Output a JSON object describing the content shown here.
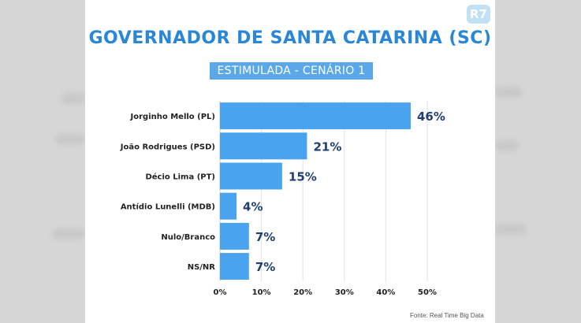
{
  "header": {
    "logo_text": "R7",
    "title": "GOVERNADOR DE SANTA CATARINA (SC)",
    "subtitle": "ESTIMULADA - CENÁRIO 1"
  },
  "footer": {
    "source": "Fonte: Real Time Big Data"
  },
  "colors": {
    "bar": "#4aa3ee",
    "value_label": "#1f3f73",
    "title": "#2a86d6",
    "subtitle_bg": "#5aa8e8"
  },
  "chart_data": {
    "type": "bar",
    "orientation": "horizontal",
    "categories": [
      "Jorginho Mello (PL)",
      "João Rodrigues (PSD)",
      "Décio Lima (PT)",
      "Antídio Lunelli (MDB)",
      "Nulo/Branco",
      "NS/NR"
    ],
    "values": [
      46,
      21,
      15,
      4,
      7,
      7
    ],
    "value_labels": [
      "46%",
      "21%",
      "15%",
      "4%",
      "7%",
      "7%"
    ],
    "xlim": [
      0,
      50
    ],
    "x_ticks": [
      0,
      10,
      20,
      30,
      40,
      50
    ],
    "x_tick_labels": [
      "0%",
      "10%",
      "20%",
      "30%",
      "40%",
      "50%"
    ],
    "grid": true
  }
}
